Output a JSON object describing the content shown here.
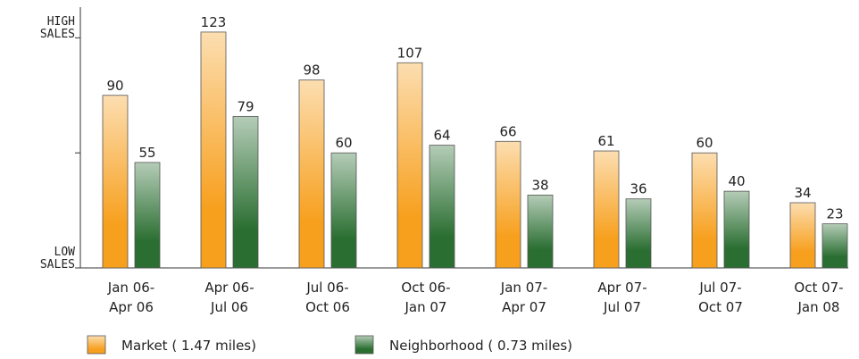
{
  "chart_data": {
    "type": "bar",
    "categories": [
      [
        "Jan 06-",
        "Apr 06"
      ],
      [
        "Apr 06-",
        "Jul 06"
      ],
      [
        "Jul 06-",
        "Oct 06"
      ],
      [
        "Oct 06-",
        "Jan 07"
      ],
      [
        "Jan 07-",
        "Apr 07"
      ],
      [
        "Apr 07-",
        "Jul 07"
      ],
      [
        "Jul 07-",
        "Oct 07"
      ],
      [
        "Oct 07-",
        "Jan 08"
      ]
    ],
    "series": [
      {
        "name": "Market ( 1.47 miles)",
        "color": "#f7a01e",
        "values": [
          90,
          123,
          98,
          107,
          66,
          61,
          60,
          34
        ]
      },
      {
        "name": "Neighborhood ( 0.73 miles)",
        "color": "#2a6e31",
        "values": [
          55,
          79,
          60,
          64,
          38,
          36,
          40,
          23
        ]
      }
    ],
    "ylim": [
      0,
      136
    ],
    "yticks": [
      {
        "value": 0,
        "label": "LOW SALES"
      },
      {
        "value": 60
      },
      {
        "value": 120,
        "label": "HIGH SALES"
      }
    ]
  }
}
